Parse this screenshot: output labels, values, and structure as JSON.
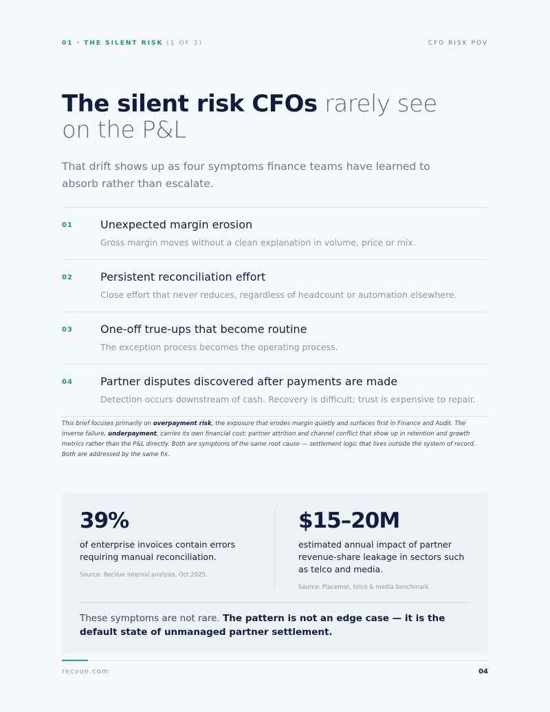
{
  "header": {
    "section": "01 · THE SILENT RISK",
    "part": "(1 OF 3)",
    "label": "CFO RISK POV"
  },
  "title": {
    "bold": "The silent risk CFOs",
    "light": "rarely see on the P&L"
  },
  "subtitle": "That drift shows up as four symptoms finance teams have learned to absorb rather than escalate.",
  "symptoms": [
    {
      "number": "01",
      "title": "Unexpected margin erosion",
      "description": "Gross margin moves without a clean explanation in volume, price or mix."
    },
    {
      "number": "02",
      "title": "Persistent reconciliation effort",
      "description": "Close effort that never reduces, regardless of headcount or automation elsewhere."
    },
    {
      "number": "03",
      "title": "One-off true-ups that become routine",
      "description": "The exception process becomes the operating process."
    },
    {
      "number": "04",
      "title": "Partner disputes discovered after payments are made",
      "description": "Detection occurs downstream of cash. Recovery is difficult; trust is expensive to repair."
    }
  ],
  "note": [
    "This brief focuses primarily on",
    "overpayment risk",
    ", the exposure that erodes margin quietly and surfaces first in Finance and Audit. The inverse failure,",
    "underpayment",
    ", carries its own financial cost: partner attrition and channel conflict that show up in retention and growth metrics rather than the P&L directly. Both are symptoms of the same root cause — settlement logic that lives outside the system of record. Both are addressed by the same fix."
  ],
  "stats": [
    {
      "value": "39%",
      "description": "of enterprise invoices contain errors requiring manual reconciliation.",
      "source": "Source: RecVue internal analysis, Oct 2025."
    },
    {
      "value": "$15–20M",
      "description": "estimated annual impact of partner revenue-share leakage in sectors such as telco and media.",
      "source": "Source: Placemat, telco & media benchmark."
    }
  ],
  "callout": {
    "text": "These symptoms are not rare.",
    "emphasis": "The pattern is not an edge case — it is the default state of unmanaged partner settlement."
  },
  "footer": {
    "site": "recvue.com",
    "page": "04"
  }
}
